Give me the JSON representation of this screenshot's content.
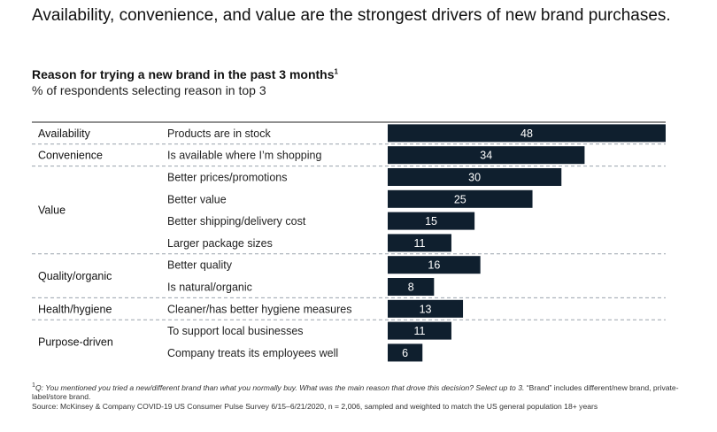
{
  "header": {
    "headline": "Availability, convenience, and value are the strongest drivers of new brand purchases.",
    "subtitle": "Reason for trying a new brand in the past 3 months",
    "subtitle_mark": "1",
    "unit": "% of respondents selecting reason in top 3"
  },
  "colors": {
    "bar": "#0f1f2e",
    "divider": "#9aa3ad",
    "rule": "#222222"
  },
  "chart_data": {
    "type": "bar",
    "orientation": "horizontal",
    "groups": [
      {
        "name": "Availability",
        "items": [
          {
            "label": "Products are in stock",
            "value": 48
          }
        ]
      },
      {
        "name": "Convenience",
        "items": [
          {
            "label": "Is available where I’m shopping",
            "value": 34
          }
        ]
      },
      {
        "name": "Value",
        "items": [
          {
            "label": "Better prices/promotions",
            "value": 30
          },
          {
            "label": "Better value",
            "value": 25
          },
          {
            "label": "Better shipping/delivery cost",
            "value": 15
          },
          {
            "label": "Larger package sizes",
            "value": 11
          }
        ]
      },
      {
        "name": "Quality/organic",
        "items": [
          {
            "label": "Better quality",
            "value": 16
          },
          {
            "label": "Is natural/organic",
            "value": 8
          }
        ]
      },
      {
        "name": "Health/hygiene",
        "items": [
          {
            "label": "Cleaner/has better hygiene measures",
            "value": 13
          }
        ]
      },
      {
        "name": "Purpose-driven",
        "items": [
          {
            "label": "To support local businesses",
            "value": 11
          },
          {
            "label": "Company treats its employees well",
            "value": 6
          }
        ]
      }
    ]
  },
  "footnotes": {
    "question_mark": "1",
    "question": "Q: You mentioned you tried a new/different brand than what you normally buy. What was the main reason that drove this decision? Select up to 3.",
    "question_note": " “Brand” includes different/new brand, private-label/store brand.",
    "source": "Source: McKinsey & Company COVID-19 US Consumer Pulse Survey 6/15–6/21/2020, n = 2,006, sampled and weighted to match the US general population 18+ years"
  }
}
